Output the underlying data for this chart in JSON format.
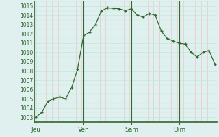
{
  "background_color": "#dff0ee",
  "grid_major_color": "#c8e8e0",
  "grid_minor_color": "#e8c8c8",
  "line_color": "#336633",
  "marker_color": "#336633",
  "ylim": [
    1002.5,
    1015.5
  ],
  "yticks": [
    1003,
    1004,
    1005,
    1006,
    1007,
    1008,
    1009,
    1010,
    1011,
    1012,
    1013,
    1014,
    1015
  ],
  "day_labels": [
    "Jeu",
    "Ven",
    "Sam",
    "Dim"
  ],
  "day_positions": [
    0,
    8,
    16,
    24
  ],
  "vline_color": "#336633",
  "axis_color": "#336633",
  "tick_label_color": "#336633",
  "xlim_min": -0.3,
  "xlim_max": 30.3,
  "x": [
    0,
    1,
    2,
    3,
    4,
    5,
    6,
    7,
    8,
    9,
    10,
    11,
    12,
    13,
    14,
    15,
    16,
    17,
    18,
    19,
    20,
    21,
    22,
    23,
    24,
    25,
    26,
    27,
    28,
    29,
    30
  ],
  "y": [
    1003.0,
    1003.5,
    1004.7,
    1005.0,
    1005.2,
    1005.0,
    1006.2,
    1008.2,
    1011.8,
    1012.2,
    1013.0,
    1014.5,
    1014.8,
    1014.75,
    1014.7,
    1014.5,
    1014.7,
    1014.0,
    1013.8,
    1014.2,
    1014.0,
    1012.3,
    1011.5,
    1011.2,
    1011.0,
    1010.9,
    1010.0,
    1009.5,
    1010.0,
    1010.2,
    1008.7
  ]
}
